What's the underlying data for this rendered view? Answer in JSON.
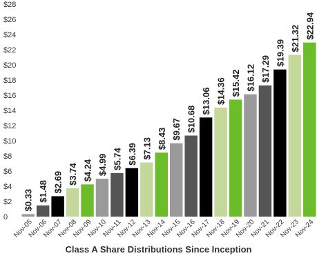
{
  "chart_data": {
    "type": "bar",
    "title": "Class A Share Distributions Since Inception",
    "categories": [
      "Nov-05",
      "Nov-06",
      "Nov-07",
      "Nov-08",
      "Nov-09",
      "Nov-10",
      "Nov-11",
      "Nov-12",
      "Nov-13",
      "Nov-14",
      "Nov-15",
      "Nov-16",
      "Nov-17",
      "Nov-18",
      "Nov-19",
      "Nov-20",
      "Nov-21",
      "Nov-22",
      "Nov-23",
      "Nov-24"
    ],
    "values": [
      0.33,
      1.48,
      2.69,
      3.74,
      4.24,
      4.99,
      5.74,
      6.39,
      7.13,
      8.43,
      9.67,
      10.68,
      13.06,
      14.36,
      15.42,
      16.12,
      17.29,
      19.39,
      21.32,
      22.94
    ],
    "data_labels": [
      "$0.33",
      "$1.48",
      "$2.69",
      "$3.74",
      "$4.24",
      "$4.99",
      "$5.74",
      "$6.39",
      "$7.13",
      "$8.43",
      "$9.67",
      "$10.68",
      "$13.06",
      "$14.36",
      "$15.42",
      "$16.12",
      "$17.29",
      "$19.39",
      "$21.32",
      "$22.94"
    ],
    "bar_colors": [
      "#9a9a9a",
      "#555555",
      "#000000",
      "#c4d89b",
      "#6cbd2a",
      "#9a9a9a",
      "#555555",
      "#000000",
      "#c4d89b",
      "#6cbd2a",
      "#9a9a9a",
      "#555555",
      "#000000",
      "#c4d89b",
      "#6cbd2a",
      "#9a9a9a",
      "#555555",
      "#000000",
      "#c4d89b",
      "#6cbd2a"
    ],
    "y_ticks": [
      "0",
      "$2",
      "$4",
      "$6",
      "$8",
      "$10",
      "$12",
      "$14",
      "$16",
      "$18",
      "$20",
      "$22",
      "$24",
      "$26",
      "$28"
    ],
    "ylim": [
      0,
      28
    ],
    "xlabel": "",
    "ylabel": "",
    "grid": false,
    "legend": "none"
  }
}
